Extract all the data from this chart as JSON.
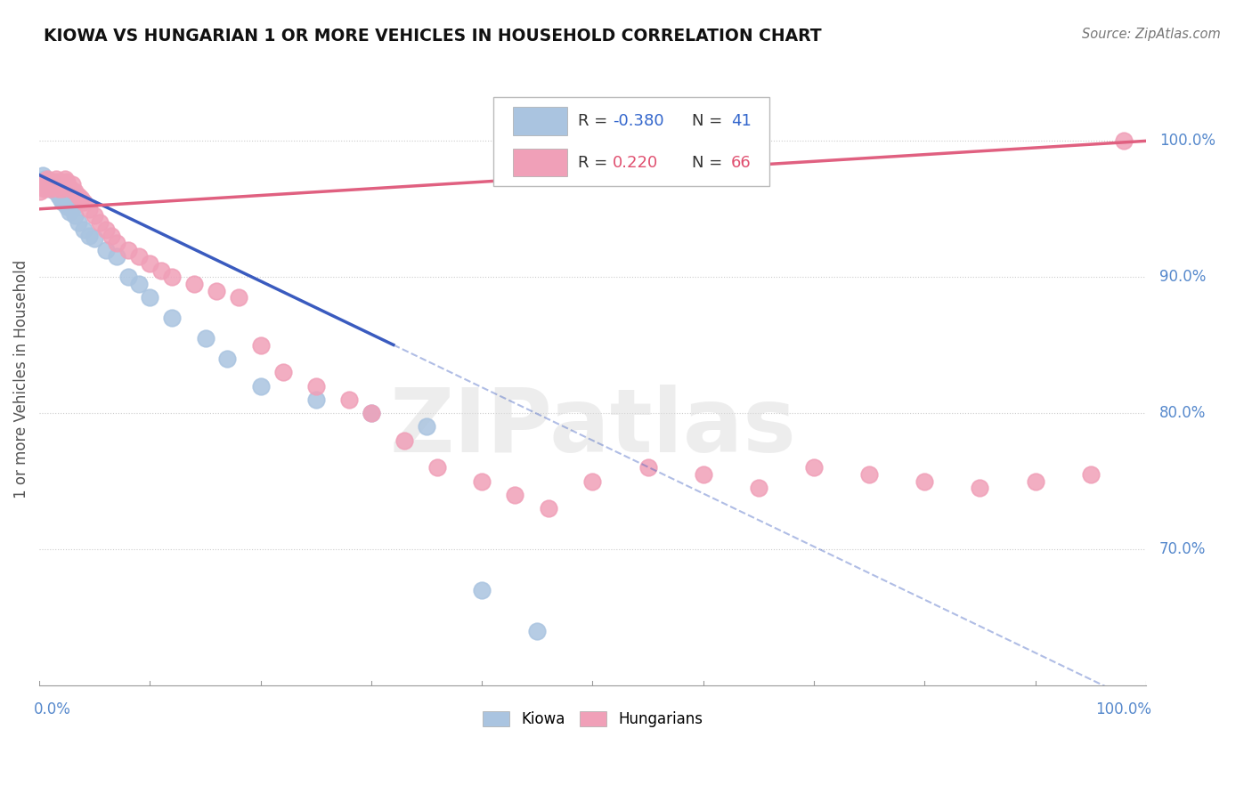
{
  "title": "KIOWA VS HUNGARIAN 1 OR MORE VEHICLES IN HOUSEHOLD CORRELATION CHART",
  "source": "Source: ZipAtlas.com",
  "ylabel": "1 or more Vehicles in Household",
  "legend_kiowa": "Kiowa",
  "legend_hungarian": "Hungarians",
  "R_kiowa": -0.38,
  "N_kiowa": 41,
  "R_hungarian": 0.22,
  "N_hungarian": 66,
  "kiowa_color": "#aac4e0",
  "hungarian_color": "#f0a0b8",
  "kiowa_line_color": "#3a5bbf",
  "hungarian_line_color": "#e06080",
  "kiowa_x": [
    0.001,
    0.003,
    0.005,
    0.006,
    0.008,
    0.009,
    0.01,
    0.011,
    0.012,
    0.013,
    0.014,
    0.015,
    0.016,
    0.017,
    0.018,
    0.019,
    0.02,
    0.021,
    0.022,
    0.025,
    0.027,
    0.03,
    0.032,
    0.035,
    0.04,
    0.045,
    0.05,
    0.06,
    0.07,
    0.08,
    0.09,
    0.1,
    0.12,
    0.15,
    0.17,
    0.2,
    0.25,
    0.3,
    0.35,
    0.4,
    0.45
  ],
  "kiowa_y": [
    0.97,
    0.975,
    0.972,
    0.968,
    0.971,
    0.965,
    0.967,
    0.97,
    0.965,
    0.968,
    0.963,
    0.966,
    0.964,
    0.962,
    0.96,
    0.958,
    0.962,
    0.955,
    0.958,
    0.952,
    0.948,
    0.95,
    0.945,
    0.94,
    0.935,
    0.93,
    0.928,
    0.92,
    0.915,
    0.9,
    0.895,
    0.885,
    0.87,
    0.855,
    0.84,
    0.82,
    0.81,
    0.8,
    0.79,
    0.67,
    0.64
  ],
  "hungarian_x": [
    0.001,
    0.002,
    0.003,
    0.004,
    0.005,
    0.006,
    0.007,
    0.008,
    0.009,
    0.01,
    0.011,
    0.012,
    0.013,
    0.014,
    0.015,
    0.016,
    0.017,
    0.018,
    0.019,
    0.02,
    0.021,
    0.022,
    0.023,
    0.025,
    0.026,
    0.028,
    0.03,
    0.032,
    0.035,
    0.038,
    0.04,
    0.045,
    0.05,
    0.055,
    0.06,
    0.065,
    0.07,
    0.08,
    0.09,
    0.1,
    0.11,
    0.12,
    0.14,
    0.16,
    0.18,
    0.2,
    0.22,
    0.25,
    0.28,
    0.3,
    0.33,
    0.36,
    0.4,
    0.43,
    0.46,
    0.5,
    0.55,
    0.6,
    0.65,
    0.7,
    0.75,
    0.8,
    0.85,
    0.9,
    0.95,
    0.98
  ],
  "hungarian_y": [
    0.963,
    0.968,
    0.97,
    0.966,
    0.965,
    0.968,
    0.972,
    0.97,
    0.967,
    0.965,
    0.968,
    0.97,
    0.966,
    0.968,
    0.972,
    0.97,
    0.967,
    0.965,
    0.968,
    0.97,
    0.965,
    0.968,
    0.972,
    0.97,
    0.967,
    0.965,
    0.968,
    0.963,
    0.96,
    0.958,
    0.955,
    0.95,
    0.945,
    0.94,
    0.935,
    0.93,
    0.925,
    0.92,
    0.915,
    0.91,
    0.905,
    0.9,
    0.895,
    0.89,
    0.885,
    0.85,
    0.83,
    0.82,
    0.81,
    0.8,
    0.78,
    0.76,
    0.75,
    0.74,
    0.73,
    0.75,
    0.76,
    0.755,
    0.745,
    0.76,
    0.755,
    0.75,
    0.745,
    0.75,
    0.755,
    1.0
  ],
  "ytick_labels": [
    "100.0%",
    "90.0%",
    "80.0%",
    "70.0%"
  ],
  "ytick_positions": [
    1.0,
    0.9,
    0.8,
    0.7
  ],
  "xlim": [
    0.0,
    1.0
  ],
  "ylim": [
    0.6,
    1.05
  ],
  "watermark": "ZIPatlas",
  "background_color": "#ffffff",
  "grid_color": "#cccccc"
}
